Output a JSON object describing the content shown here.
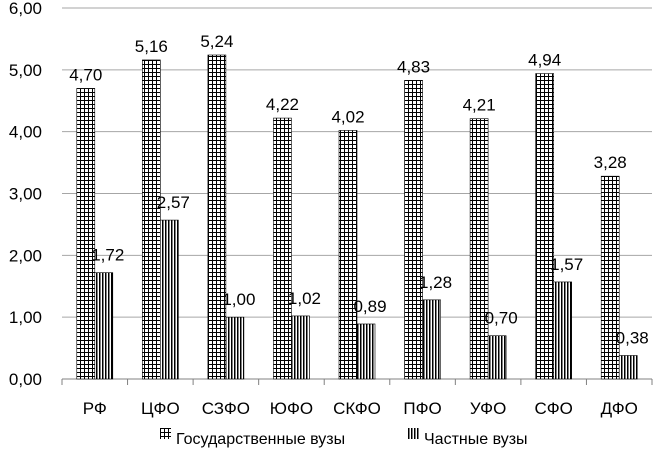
{
  "chart_data": {
    "type": "bar",
    "title": "",
    "xlabel": "",
    "ylabel": "",
    "categories": [
      "РФ",
      "ЦФО",
      "СЗФО",
      "ЮФО",
      "СКФО",
      "ПФО",
      "УФО",
      "СФО",
      "ДФО"
    ],
    "series": [
      {
        "name": "Государственные вузы",
        "values": [
          4.7,
          5.16,
          5.24,
          4.22,
          4.02,
          4.83,
          4.21,
          4.94,
          3.28
        ],
        "labels": [
          "4,70",
          "5,16",
          "5,24",
          "4,22",
          "4,02",
          "4,83",
          "4,21",
          "4,94",
          "3,28"
        ],
        "pattern": "grid"
      },
      {
        "name": "Частные вузы",
        "values": [
          1.72,
          2.57,
          1.0,
          1.02,
          0.89,
          1.28,
          0.7,
          1.57,
          0.38
        ],
        "labels": [
          "1,72",
          "2,57",
          "1,00",
          "1,02",
          "0,89",
          "1,28",
          "0,70",
          "1,57",
          "0,38"
        ],
        "pattern": "vertical-lines"
      }
    ],
    "ylim": [
      0,
      6
    ],
    "yticks": [
      "0,00",
      "1,00",
      "2,00",
      "3,00",
      "4,00",
      "5,00",
      "6,00"
    ],
    "grid": true,
    "legend": "bottom"
  }
}
